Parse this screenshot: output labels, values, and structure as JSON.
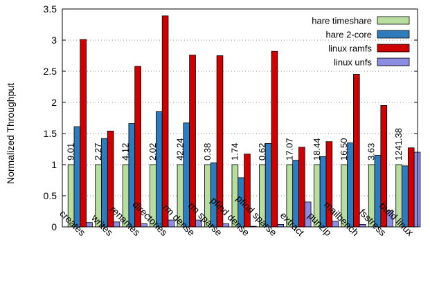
{
  "chart_data": {
    "type": "bar",
    "title": "",
    "xlabel": "",
    "ylabel": "Normalized Throughput",
    "ylim": [
      0,
      3.5
    ],
    "yticks": [
      0,
      0.5,
      1,
      1.5,
      2,
      2.5,
      3,
      3.5
    ],
    "ytick_labels": [
      "0",
      "0.5",
      "1",
      "1.5",
      "2",
      "2.5",
      "3",
      "3.5"
    ],
    "grid": "horizontal dotted",
    "legend_position": "top-right",
    "categories": [
      "creates",
      "writes",
      "renames",
      "directories",
      "rm dense",
      "rm sparse",
      "pfind dense",
      "pfind sparse",
      "extract",
      "punzip",
      "mailbench",
      "fsstress",
      "build linux"
    ],
    "bar_labels": [
      "9.01",
      "2.27",
      "4.12",
      "2.02",
      "42.24",
      "0.38",
      "1.74",
      "0.62",
      "17.07",
      "18.44",
      "16.50",
      "3.63",
      "1241.38"
    ],
    "series": [
      {
        "name": "hare timeshare",
        "color": "#b7dd9f",
        "values": [
          1,
          1,
          1,
          1,
          1,
          1,
          1,
          1,
          1,
          1,
          1,
          1,
          1
        ]
      },
      {
        "name": "hare 2-core",
        "color": "#2e7bbd",
        "values": [
          1.61,
          1.42,
          1.66,
          1.85,
          1.67,
          1.03,
          0.79,
          1.34,
          1.07,
          1.13,
          1.35,
          1.15,
          0.98
        ]
      },
      {
        "name": "linux ramfs",
        "color": "#cc0000",
        "values": [
          3.01,
          1.54,
          2.58,
          3.39,
          2.76,
          2.75,
          1.17,
          2.82,
          1.28,
          1.37,
          2.45,
          1.95,
          1.27
        ]
      },
      {
        "name": "linux unfs",
        "color": "#8c8ce0",
        "values": [
          0.07,
          0.08,
          0.05,
          0.11,
          0.11,
          0.05,
          0.01,
          0.04,
          0.4,
          0.09,
          0.04,
          0.26,
          1.2
        ]
      }
    ]
  }
}
